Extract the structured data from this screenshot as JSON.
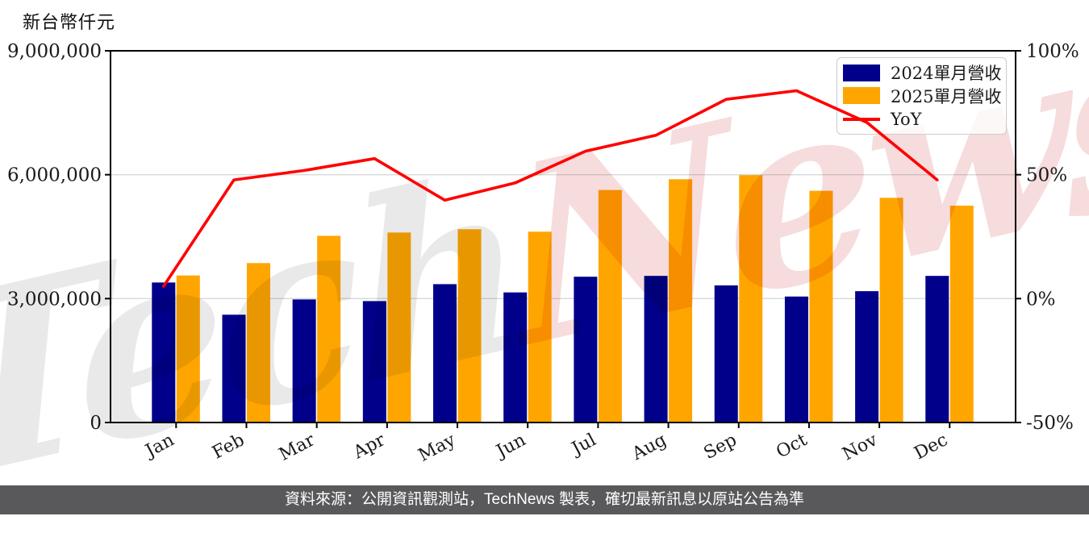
{
  "header": {
    "y_axis_title": "新台幣仟元"
  },
  "watermark": {
    "part1": "Tech",
    "part2": "News"
  },
  "footer": {
    "caption": "資料來源：公開資訊觀測站，TechNews 製表，確切最新訊息以原站公告為準"
  },
  "chart_data": {
    "type": "combo",
    "categories": [
      "Jan",
      "Feb",
      "Mar",
      "Apr",
      "May",
      "Jun",
      "Jul",
      "Aug",
      "Sep",
      "Oct",
      "Nov",
      "Dec"
    ],
    "series": [
      {
        "name": "2024單月營收",
        "type": "bar",
        "axis": "left",
        "color": "#00008B",
        "values": [
          3390000,
          2610000,
          2980000,
          2940000,
          3350000,
          3150000,
          3530000,
          3550000,
          3320000,
          3050000,
          3180000,
          3550000
        ]
      },
      {
        "name": "2025單月營收",
        "type": "bar",
        "axis": "left",
        "color": "#FFA500",
        "values": [
          3560000,
          3860000,
          4520000,
          4600000,
          4680000,
          4620000,
          5630000,
          5890000,
          5990000,
          5610000,
          5440000,
          5250000
        ]
      },
      {
        "name": "YoY",
        "type": "line",
        "axis": "right",
        "color": "#FF0000",
        "unit": "%",
        "values": [
          5.0,
          47.9,
          51.7,
          56.5,
          39.7,
          46.7,
          59.5,
          65.9,
          80.4,
          83.9,
          71.1,
          47.9
        ]
      }
    ],
    "left_axis": {
      "title": "新台幣仟元",
      "range": [
        0,
        9000000
      ],
      "ticks": [
        0,
        3000000,
        6000000,
        9000000
      ],
      "tick_labels": [
        "0",
        "3,000,000",
        "6,000,000",
        "9,000,000"
      ]
    },
    "right_axis": {
      "range": [
        -50,
        100
      ],
      "ticks": [
        -50,
        0,
        50,
        100
      ],
      "tick_labels": [
        "-50%",
        "0%",
        "50%",
        "100%"
      ]
    },
    "grid": "horizontal",
    "legend_position": "top-right",
    "colors": {
      "grid": "#d9d9d9",
      "axis": "#000000"
    }
  }
}
